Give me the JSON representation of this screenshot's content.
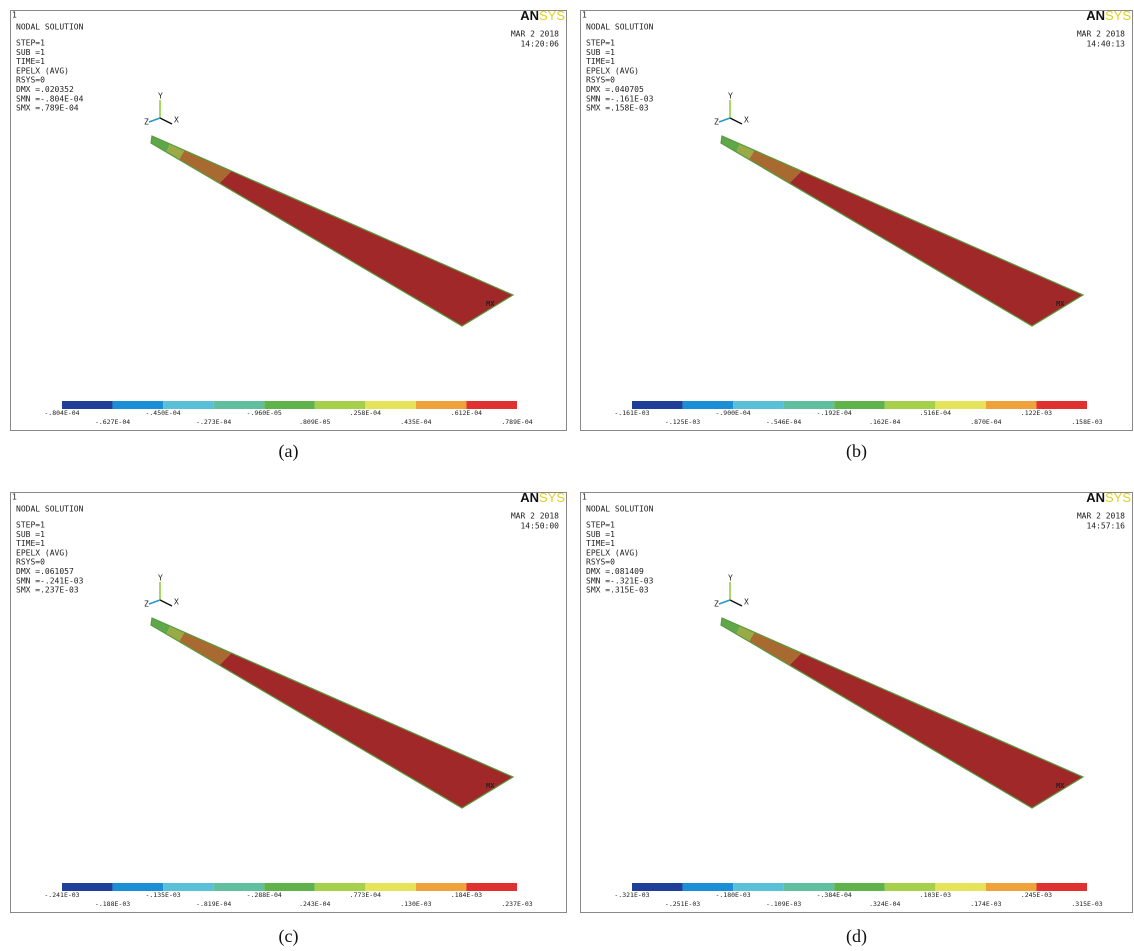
{
  "panels": [
    {
      "caption": "(a)",
      "window_number": "1",
      "header": "NODAL SOLUTION",
      "info": [
        "STEP=1",
        "SUB =1",
        "TIME=1",
        "EPELX    (AVG)",
        "RSYS=0",
        "DMX =.020352",
        "SMN =-.804E-04",
        "SMX =.789E-04"
      ],
      "date": "MAR  2 2018",
      "time": "14:20:06",
      "logo_left": "AN",
      "logo_right": "SYS",
      "axis_labels": [
        "Y",
        "Z",
        "X"
      ],
      "max_marker": "MX",
      "legend": [
        "-.804E-04",
        "-.627E-04",
        "-.450E-04",
        "-.273E-04",
        "-.960E-05",
        ".809E-05",
        ".258E-04",
        ".435E-04",
        ".612E-04",
        ".789E-04"
      ]
    },
    {
      "caption": "(b)",
      "window_number": "1",
      "header": "NODAL SOLUTION",
      "info": [
        "STEP=1",
        "SUB =1",
        "TIME=1",
        "EPELX    (AVG)",
        "RSYS=0",
        "DMX =.040705",
        "SMN =-.161E-03",
        "SMX =.158E-03"
      ],
      "date": "MAR  2 2018",
      "time": "14:40:13",
      "logo_left": "AN",
      "logo_right": "SYS",
      "axis_labels": [
        "Y",
        "Z",
        "X"
      ],
      "max_marker": "MX",
      "legend": [
        "-.161E-03",
        "-.125E-03",
        "-.900E-04",
        "-.546E-04",
        "-.192E-04",
        ".162E-04",
        ".516E-04",
        ".870E-04",
        ".122E-03",
        ".158E-03"
      ]
    },
    {
      "caption": "(c)",
      "window_number": "1",
      "header": "NODAL SOLUTION",
      "info": [
        "STEP=1",
        "SUB =1",
        "TIME=1",
        "EPELX    (AVG)",
        "RSYS=0",
        "DMX =.061057",
        "SMN =-.241E-03",
        "SMX =.237E-03"
      ],
      "date": "MAR  2 2018",
      "time": "14:50:00",
      "logo_left": "AN",
      "logo_right": "SYS",
      "axis_labels": [
        "Y",
        "Z",
        "X"
      ],
      "max_marker": "MX",
      "legend": [
        "-.241E-03",
        "-.188E-03",
        "-.135E-03",
        "-.819E-04",
        "-.288E-04",
        ".243E-04",
        ".773E-04",
        ".130E-03",
        ".184E-03",
        ".237E-03"
      ]
    },
    {
      "caption": "(d)",
      "window_number": "1",
      "header": "NODAL SOLUTION",
      "info": [
        "STEP=1",
        "SUB =1",
        "TIME=1",
        "EPELX    (AVG)",
        "RSYS=0",
        "DMX =.081409",
        "SMN =-.321E-03",
        "SMX =.315E-03"
      ],
      "date": "MAR  2 2018",
      "time": "14:57:16",
      "logo_left": "AN",
      "logo_right": "SYS",
      "axis_labels": [
        "Y",
        "Z",
        "X"
      ],
      "max_marker": "MX",
      "legend": [
        "-.321E-03",
        "-.251E-03",
        "-.180E-03",
        "-.109E-03",
        "-.384E-04",
        ".324E-04",
        ".103E-03",
        ".174E-03",
        ".245E-03",
        ".315E-03"
      ]
    }
  ]
}
